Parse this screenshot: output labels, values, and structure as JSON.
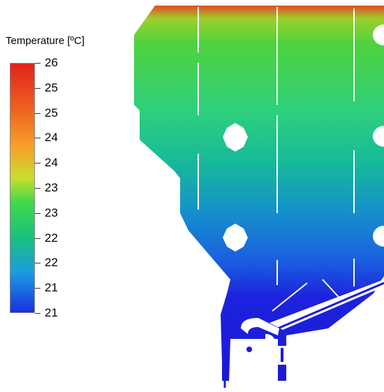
{
  "legend": {
    "title": "Temperature [ºC]",
    "ticks": [
      "26",
      "25",
      "25",
      "24",
      "24",
      "23",
      "23",
      "22",
      "22",
      "21",
      "21"
    ]
  },
  "colormap": {
    "top": "#e4221b",
    "upper": "#f6a22a",
    "mid": "#3fd94a",
    "lower": "#1a9de0",
    "bottom": "#1b2fe0"
  }
}
